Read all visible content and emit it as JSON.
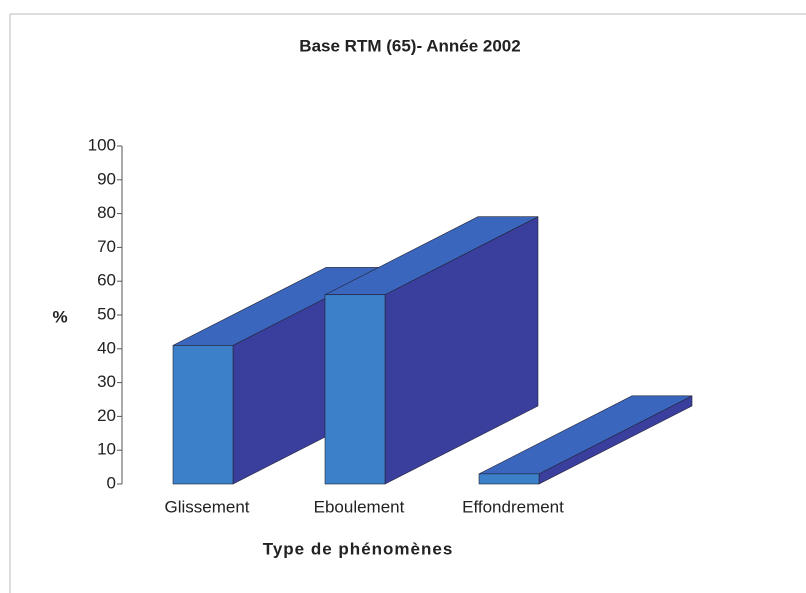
{
  "chart_data": {
    "type": "bar3d",
    "title": "Base RTM (65)- Année 2002",
    "x_label": "Type de phénomènes",
    "y_label": "%",
    "categories": [
      "Glissement",
      "Eboulement",
      "Effondrement"
    ],
    "values": [
      41,
      56,
      3
    ],
    "color": "#3b80c9",
    "ylim": [
      0,
      100
    ],
    "yticks": [
      0,
      10,
      20,
      30,
      40,
      50,
      60,
      70,
      80,
      90,
      100
    ],
    "grid": false
  }
}
